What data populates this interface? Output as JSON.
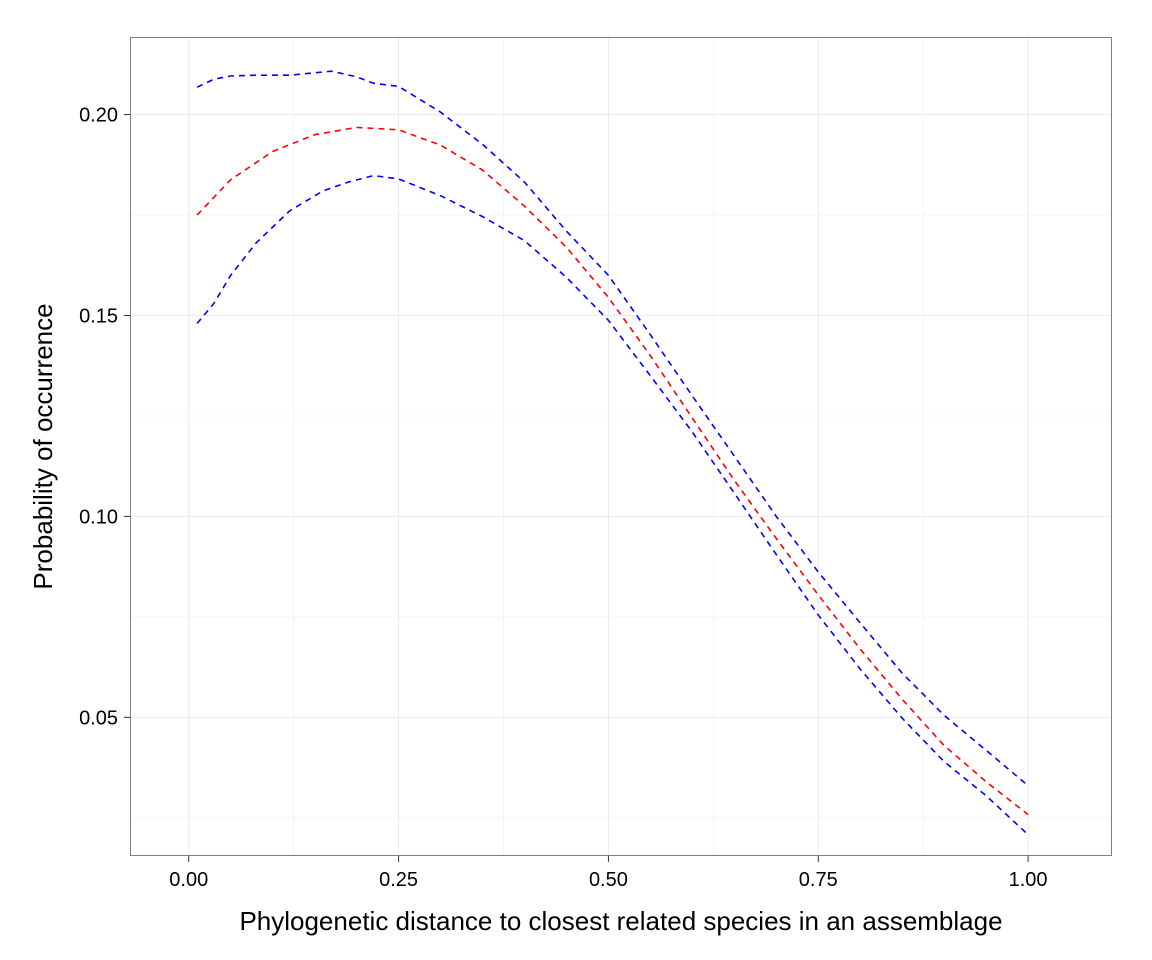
{
  "chart_data": {
    "type": "line",
    "title": "",
    "xlabel": "Phylogenetic distance to closest related species in an assemblage",
    "ylabel": "Probability of occurrence",
    "xlim": [
      -0.07,
      1.1
    ],
    "ylim": [
      0.0155,
      0.2193
    ],
    "x_ticks": [
      0.0,
      0.25,
      0.5,
      0.75,
      1.0
    ],
    "x_tick_labels": [
      "0.00",
      "0.25",
      "0.50",
      "0.75",
      "1.00"
    ],
    "y_ticks": [
      0.05,
      0.1,
      0.15,
      0.2
    ],
    "y_tick_labels": [
      "0.05",
      "0.10",
      "0.15",
      "0.20"
    ],
    "grid": true,
    "legend": "none",
    "series": [
      {
        "color": "#0000ff",
        "dash": "dashed",
        "x": [
          0.01,
          0.03,
          0.05,
          0.08,
          0.12,
          0.17,
          0.2,
          0.22,
          0.25,
          0.3,
          0.35,
          0.4,
          0.45,
          0.5,
          0.55,
          0.6,
          0.65,
          0.7,
          0.75,
          0.8,
          0.85,
          0.9,
          0.95,
          1.0
        ],
        "y": [
          0.2068,
          0.2088,
          0.2096,
          0.2098,
          0.2098,
          0.2108,
          0.2094,
          0.2078,
          0.207,
          0.2006,
          0.1926,
          0.1832,
          0.171,
          0.16,
          0.1452,
          0.13,
          0.115,
          0.1,
          0.0862,
          0.0735,
          0.061,
          0.0505,
          0.0418,
          0.033
        ]
      },
      {
        "color": "#ff0000",
        "dash": "dashed",
        "x": [
          0.01,
          0.05,
          0.1,
          0.15,
          0.2,
          0.25,
          0.3,
          0.35,
          0.4,
          0.45,
          0.5,
          0.55,
          0.6,
          0.65,
          0.7,
          0.75,
          0.8,
          0.85,
          0.9,
          0.95,
          1.0
        ],
        "y": [
          0.175,
          0.1838,
          0.1908,
          0.195,
          0.1968,
          0.1962,
          0.1924,
          0.1862,
          0.1772,
          0.167,
          0.1545,
          0.14,
          0.1245,
          0.109,
          0.0945,
          0.0805,
          0.067,
          0.0545,
          0.043,
          0.034,
          0.0258
        ]
      },
      {
        "color": "#0000ff",
        "dash": "dashed",
        "x": [
          0.01,
          0.03,
          0.05,
          0.08,
          0.12,
          0.16,
          0.19,
          0.22,
          0.25,
          0.3,
          0.35,
          0.4,
          0.45,
          0.5,
          0.55,
          0.6,
          0.65,
          0.7,
          0.75,
          0.8,
          0.85,
          0.9,
          0.95,
          1.0
        ],
        "y": [
          0.148,
          0.153,
          0.16,
          0.168,
          0.176,
          0.181,
          0.1832,
          0.1848,
          0.184,
          0.1798,
          0.1746,
          0.1686,
          0.1595,
          0.1488,
          0.135,
          0.121,
          0.1058,
          0.0905,
          0.0755,
          0.062,
          0.0498,
          0.039,
          0.0305,
          0.0208
        ]
      }
    ]
  }
}
